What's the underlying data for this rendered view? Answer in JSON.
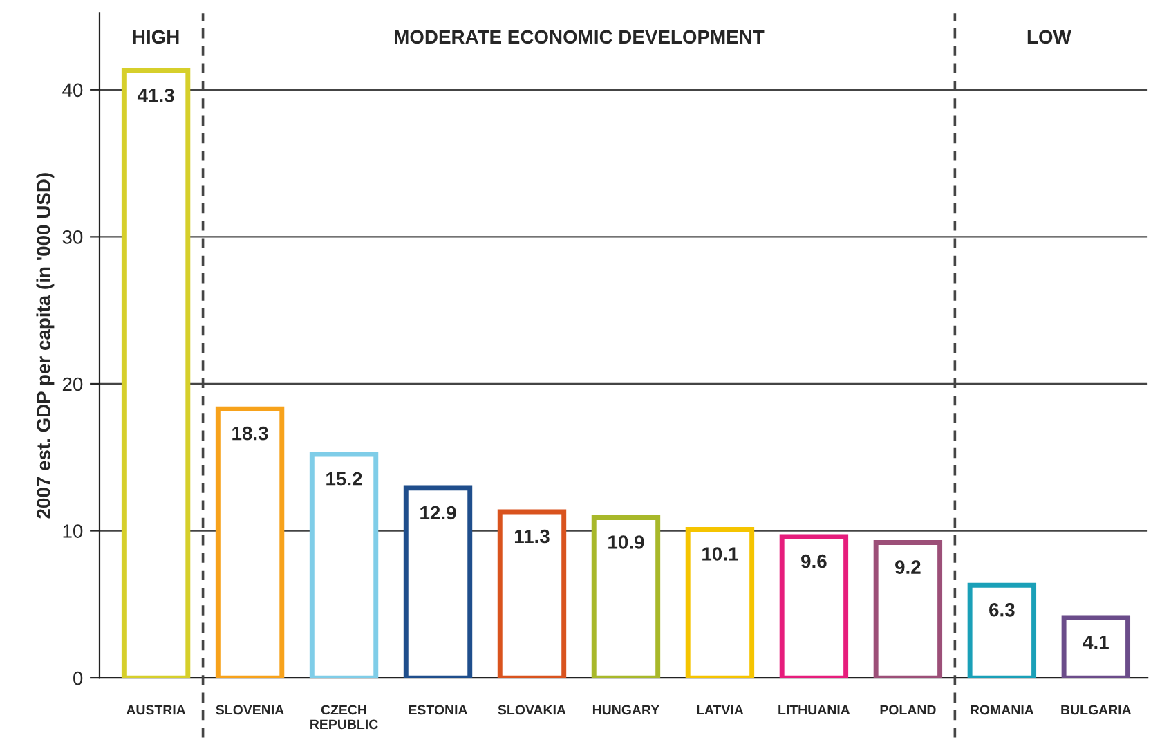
{
  "chart_data": {
    "type": "bar",
    "ylabel": "2007 est. GDP per capita (in '000 USD)",
    "categories": [
      "AUSTRIA",
      "SLOVENIA",
      "CZECH\nREPUBLIC",
      "ESTONIA",
      "SLOVAKIA",
      "HUNGARY",
      "LATVIA",
      "LITHUANIA",
      "POLAND",
      "ROMANIA",
      "BULGARIA"
    ],
    "values": [
      41.3,
      18.3,
      15.2,
      12.9,
      11.3,
      10.9,
      10.1,
      9.6,
      9.2,
      6.3,
      4.1
    ],
    "colors": [
      "#d6cf2b",
      "#f7a21b",
      "#7fcde8",
      "#1f4e8c",
      "#d9531e",
      "#a8b82a",
      "#f5c400",
      "#e61d7c",
      "#9c4f78",
      "#1aa0b8",
      "#6b4c8a"
    ],
    "data_labels": true,
    "ylim": [
      0,
      45.2
    ],
    "yticks": [
      0,
      10,
      20,
      30,
      40
    ],
    "grid": "y",
    "annotations": [
      "HIGH",
      "MODERATE ECONOMIC DEVELOPMENT",
      "LOW"
    ]
  }
}
